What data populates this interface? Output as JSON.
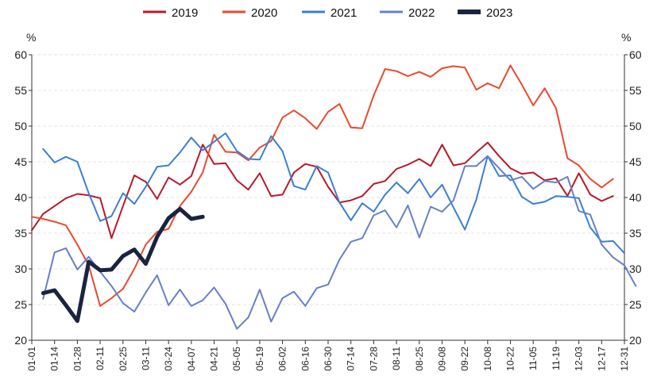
{
  "chart_data": {
    "type": "line",
    "y_unit_left": "%",
    "y_unit_right": "%",
    "ylim": [
      20,
      60
    ],
    "yticks": [
      20,
      25,
      30,
      35,
      40,
      45,
      50,
      55,
      60
    ],
    "grid": true,
    "legend_position": "top",
    "x_ticks": [
      "01-01",
      "01-14",
      "01-28",
      "02-11",
      "02-25",
      "03-11",
      "03-24",
      "04-07",
      "04-21",
      "05-05",
      "05-19",
      "06-02",
      "06-16",
      "06-30",
      "07-14",
      "07-28",
      "08-11",
      "08-25",
      "09-08",
      "09-22",
      "10-08",
      "10-22",
      "11-05",
      "11-19",
      "12-03",
      "12-17",
      "12-31"
    ],
    "series": [
      {
        "name": "2019",
        "color": "#b8192a",
        "width": 2,
        "values": [
          35.4,
          37.7,
          38.8,
          39.9,
          40.5,
          40.3,
          39.9,
          34.3,
          38.8,
          43.1,
          42.2,
          39.8,
          42.8,
          41.8,
          43.0,
          47.4,
          44.7,
          44.8,
          42.4,
          41.1,
          43.4,
          40.2,
          40.4,
          43.5,
          44.7,
          44.3,
          41.5,
          39.3,
          39.6,
          40.2,
          41.9,
          42.3,
          44.0,
          44.6,
          45.4,
          44.4,
          47.4,
          44.5,
          44.8,
          46.3,
          47.7,
          45.8,
          44.1,
          43.3,
          43.5,
          42.4,
          42.7,
          40.2,
          43.4,
          40.4,
          39.5,
          40.2
        ]
      },
      {
        "name": "2020",
        "color": "#e84a2f",
        "width": 2,
        "values": [
          37.3,
          37.0,
          36.6,
          36.1,
          33.4,
          30.5,
          24.8,
          25.9,
          27.2,
          30.0,
          33.4,
          35.2,
          35.6,
          38.8,
          40.8,
          43.5,
          48.8,
          46.4,
          46.3,
          45.2,
          47.0,
          47.9,
          51.2,
          52.2,
          51.1,
          49.6,
          52.0,
          53.1,
          49.8,
          49.7,
          54.3,
          58.0,
          57.7,
          57.0,
          57.6,
          56.9,
          58.1,
          58.4,
          58.2,
          55.1,
          56.0,
          55.3,
          58.5,
          55.8,
          52.9,
          55.3,
          52.5,
          45.5,
          44.5,
          42.6,
          41.4,
          42.6
        ]
      },
      {
        "name": "2021",
        "color": "#3b7fd4",
        "width": 2,
        "values": [
          46.8,
          44.9,
          45.7,
          45.0,
          40.6,
          36.7,
          37.4,
          40.6,
          39.1,
          41.5,
          44.3,
          44.5,
          46.3,
          48.4,
          46.6,
          47.8,
          49.0,
          46.5,
          45.4,
          45.3,
          48.6,
          46.5,
          41.6,
          41.1,
          44.4,
          43.5,
          39.3,
          36.8,
          39.2,
          38.0,
          40.4,
          42.1,
          40.6,
          42.6,
          40.0,
          41.8,
          38.6,
          35.5,
          39.7,
          45.8,
          43.0,
          43.1,
          40.1,
          39.1,
          39.4,
          40.2,
          40.1,
          39.9,
          35.8,
          33.8,
          33.9,
          32.2
        ]
      },
      {
        "name": "2022",
        "color": "#6680c9",
        "width": 2,
        "values": [
          25.8,
          32.3,
          32.9,
          29.9,
          31.7,
          29.6,
          27.6,
          25.2,
          24.0,
          26.7,
          29.1,
          24.9,
          27.1,
          24.8,
          25.6,
          27.4,
          25.1,
          21.6,
          23.2,
          27.1,
          22.6,
          25.9,
          26.8,
          24.8,
          27.3,
          27.8,
          31.3,
          33.8,
          34.3,
          37.5,
          38.2,
          35.8,
          38.9,
          34.4,
          38.7,
          38.0,
          39.6,
          44.4,
          44.4,
          45.8,
          44.1,
          42.4,
          42.9,
          41.2,
          42.3,
          42.1,
          42.9,
          38.1,
          37.6,
          33.4,
          31.6,
          30.5,
          27.6
        ]
      },
      {
        "name": "2023",
        "color": "#1a2440",
        "width": 5,
        "values": [
          26.6,
          27.0,
          24.9,
          22.7,
          31.0,
          29.8,
          29.9,
          31.8,
          32.7,
          30.7,
          34.5,
          37.1,
          38.4,
          37.0,
          37.3
        ]
      }
    ]
  }
}
